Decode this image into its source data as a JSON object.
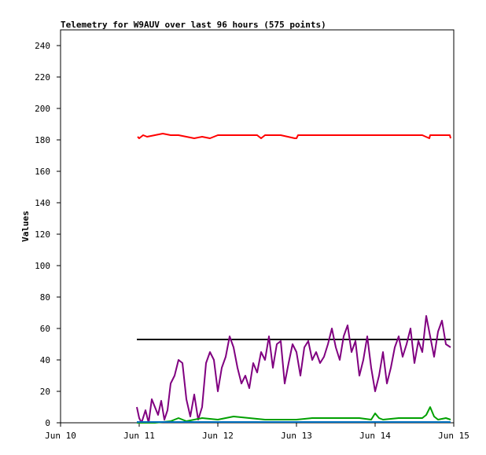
{
  "chart_data": {
    "type": "line",
    "title": "Telemetry for W9AUV over last 96 hours (575 points)",
    "xlabel": "",
    "ylabel": "Values",
    "ylim": [
      0,
      250
    ],
    "xlim": [
      "Jun 10",
      "Jun 15"
    ],
    "y_ticks": [
      0,
      20,
      40,
      60,
      80,
      100,
      120,
      140,
      160,
      180,
      200,
      220,
      240
    ],
    "x_ticks": [
      "Jun 10",
      "Jun 11",
      "Jun 12",
      "Jun 13",
      "Jun 14",
      "Jun 15"
    ],
    "grid": false,
    "legend": "none",
    "series": [
      {
        "color": "#ff0000",
        "x": [
          0.98,
          1.0,
          1.05,
          1.1,
          1.2,
          1.3,
          1.4,
          1.5,
          1.6,
          1.7,
          1.8,
          1.9,
          2.0,
          2.2,
          2.4,
          2.5,
          2.55,
          2.6,
          2.8,
          2.98,
          3.0,
          3.02,
          3.2,
          3.4,
          3.6,
          3.8,
          4.0,
          4.2,
          4.4,
          4.6,
          4.69,
          4.7,
          4.8,
          4.95,
          4.96
        ],
        "y": [
          182,
          181,
          183,
          182,
          183,
          184,
          183,
          183,
          182,
          181,
          182,
          181,
          183,
          183,
          183,
          183,
          181,
          183,
          183,
          181,
          181,
          183,
          183,
          183,
          183,
          183,
          183,
          183,
          183,
          183,
          181,
          183,
          183,
          183,
          181
        ]
      },
      {
        "color": "#000000",
        "x": [
          0.97,
          4.96
        ],
        "y": [
          53,
          53
        ]
      },
      {
        "color": "#800080",
        "x": [
          0.97,
          1.0,
          1.03,
          1.08,
          1.12,
          1.16,
          1.2,
          1.24,
          1.28,
          1.32,
          1.36,
          1.4,
          1.45,
          1.5,
          1.55,
          1.6,
          1.65,
          1.7,
          1.75,
          1.8,
          1.85,
          1.9,
          1.95,
          2.0,
          2.05,
          2.1,
          2.15,
          2.2,
          2.25,
          2.3,
          2.35,
          2.4,
          2.45,
          2.5,
          2.55,
          2.6,
          2.65,
          2.7,
          2.75,
          2.8,
          2.85,
          2.9,
          2.95,
          3.0,
          3.05,
          3.1,
          3.15,
          3.2,
          3.25,
          3.3,
          3.35,
          3.4,
          3.45,
          3.5,
          3.55,
          3.6,
          3.65,
          3.7,
          3.75,
          3.8,
          3.85,
          3.9,
          3.95,
          4.0,
          4.05,
          4.1,
          4.15,
          4.2,
          4.25,
          4.3,
          4.35,
          4.4,
          4.45,
          4.5,
          4.55,
          4.6,
          4.65,
          4.7,
          4.75,
          4.8,
          4.85,
          4.9,
          4.96
        ],
        "y": [
          10,
          3,
          0,
          8,
          0,
          15,
          10,
          5,
          14,
          2,
          8,
          25,
          30,
          40,
          38,
          15,
          4,
          18,
          2,
          10,
          38,
          45,
          40,
          20,
          35,
          42,
          55,
          48,
          35,
          25,
          30,
          22,
          38,
          32,
          45,
          40,
          55,
          35,
          50,
          52,
          25,
          38,
          50,
          45,
          30,
          48,
          52,
          40,
          45,
          38,
          42,
          50,
          60,
          48,
          40,
          55,
          62,
          45,
          52,
          30,
          40,
          55,
          35,
          20,
          30,
          45,
          25,
          35,
          48,
          55,
          42,
          50,
          60,
          38,
          52,
          45,
          68,
          55,
          42,
          58,
          65,
          50,
          48
        ]
      },
      {
        "color": "#00a000",
        "x": [
          0.97,
          1.0,
          1.2,
          1.4,
          1.5,
          1.6,
          1.8,
          2.0,
          2.2,
          2.4,
          2.6,
          2.8,
          3.0,
          3.2,
          3.4,
          3.6,
          3.8,
          3.95,
          4.0,
          4.05,
          4.1,
          4.3,
          4.6,
          4.65,
          4.7,
          4.75,
          4.8,
          4.9,
          4.96
        ],
        "y": [
          0,
          0,
          0,
          1,
          3,
          1,
          3,
          2,
          4,
          3,
          2,
          2,
          2,
          3,
          3,
          3,
          3,
          2,
          6,
          3,
          2,
          3,
          3,
          5,
          10,
          4,
          2,
          3,
          2
        ]
      },
      {
        "color": "#0070c0",
        "x": [
          0.97,
          4.96
        ],
        "y": [
          0.5,
          0.5
        ]
      }
    ]
  }
}
